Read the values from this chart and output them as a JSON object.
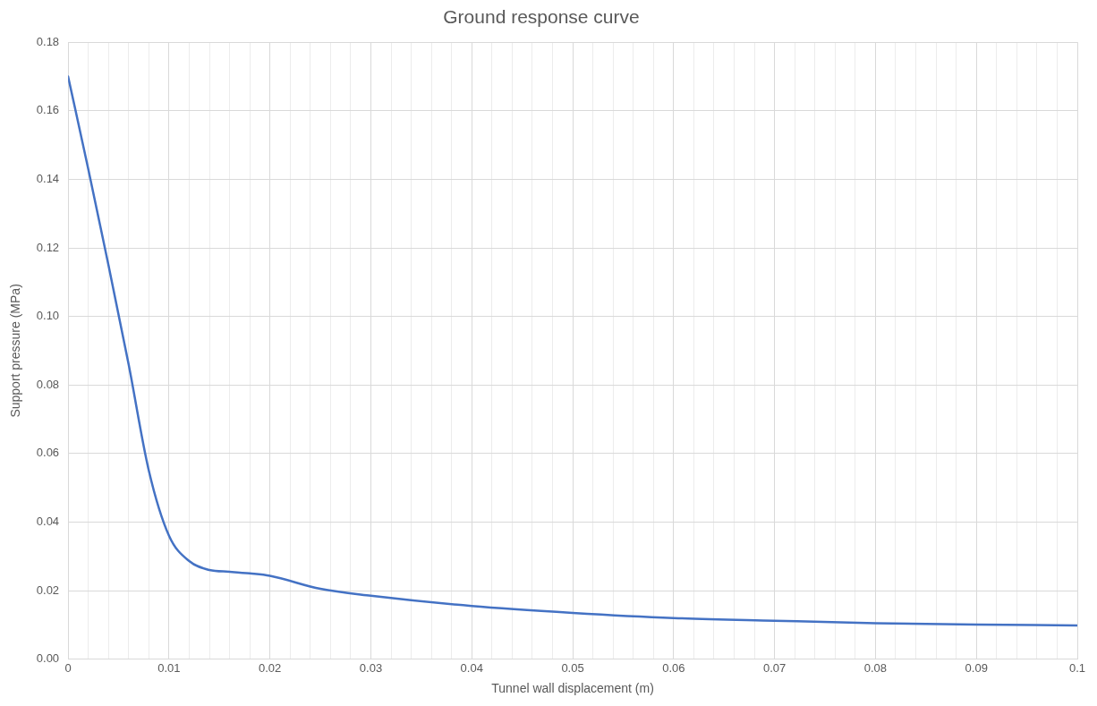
{
  "chart_data": {
    "type": "line",
    "title": "Ground response curve",
    "xlabel": "Tunnel wall displacement (m)",
    "ylabel": "Support pressure (MPa)",
    "x": [
      0,
      0.002,
      0.004,
      0.006,
      0.008,
      0.01,
      0.012,
      0.014,
      0.016,
      0.018,
      0.02,
      0.025,
      0.03,
      0.04,
      0.05,
      0.06,
      0.07,
      0.08,
      0.09,
      0.1
    ],
    "series": [
      {
        "color": "#4472c4",
        "values": [
          0.17,
          0.143,
          0.115,
          0.086,
          0.055,
          0.036,
          0.0286,
          0.026,
          0.0255,
          0.025,
          0.0243,
          0.0205,
          0.0185,
          0.0155,
          0.0135,
          0.012,
          0.0112,
          0.0105,
          0.0101,
          0.0098
        ]
      }
    ],
    "xlim": [
      0,
      0.1
    ],
    "xticks": [
      0,
      {
        "value": 0.002,
        "label": null
      },
      {
        "value": 0.004,
        "label": null
      },
      {
        "value": 0.006,
        "label": null
      },
      {
        "value": 0.008,
        "label": null
      },
      0.01,
      {
        "value": 0.012,
        "label": null
      },
      {
        "value": 0.014,
        "label": null
      },
      {
        "value": 0.016,
        "label": null
      },
      {
        "value": 0.018,
        "label": null
      },
      0.02,
      {
        "value": 0.022,
        "label": null
      },
      {
        "value": 0.024,
        "label": null
      },
      {
        "value": 0.026,
        "label": null
      },
      {
        "value": 0.028,
        "label": null
      },
      0.03,
      {
        "value": 0.032,
        "label": null
      },
      {
        "value": 0.034,
        "label": null
      },
      {
        "value": 0.036,
        "label": null
      },
      {
        "value": 0.038,
        "label": null
      },
      0.04,
      {
        "value": 0.042,
        "label": null
      },
      {
        "value": 0.044,
        "label": null
      },
      {
        "value": 0.046,
        "label": null
      },
      {
        "value": 0.048,
        "label": null
      },
      0.05,
      {
        "value": 0.052,
        "label": null
      },
      {
        "value": 0.054,
        "label": null
      },
      {
        "value": 0.056,
        "label": null
      },
      {
        "value": 0.058,
        "label": null
      },
      0.06,
      {
        "value": 0.062,
        "label": null
      },
      {
        "value": 0.064,
        "label": null
      },
      {
        "value": 0.066,
        "label": null
      },
      {
        "value": 0.068,
        "label": null
      },
      0.07,
      {
        "value": 0.072,
        "label": null
      },
      {
        "value": 0.074,
        "label": null
      },
      {
        "value": 0.076,
        "label": null
      },
      {
        "value": 0.078,
        "label": null
      },
      0.08,
      {
        "value": 0.082,
        "label": null
      },
      {
        "value": 0.084,
        "label": null
      },
      {
        "value": 0.086,
        "label": null
      },
      {
        "value": 0.088,
        "label": null
      },
      0.09,
      {
        "value": 0.092,
        "label": null
      },
      {
        "value": 0.094,
        "label": null
      },
      {
        "value": 0.096,
        "label": null
      },
      {
        "value": 0.098,
        "label": null
      },
      0.1
    ],
    "ylim": [
      0,
      0.18
    ],
    "yticks": [
      {
        "value": 0,
        "label": "0.00"
      },
      {
        "value": 0.02,
        "label": "0.02"
      },
      {
        "value": 0.04,
        "label": "0.04"
      },
      {
        "value": 0.06,
        "label": "0.06"
      },
      {
        "value": 0.08,
        "label": "0.08"
      },
      {
        "value": 0.1,
        "label": "0.10"
      },
      {
        "value": 0.12,
        "label": "0.12"
      },
      {
        "value": 0.14,
        "label": "0.14"
      },
      {
        "value": 0.16,
        "label": "0.16"
      },
      {
        "value": 0.18,
        "label": "0.18"
      }
    ],
    "grid": true,
    "marker": "none",
    "line_style": "solid"
  }
}
